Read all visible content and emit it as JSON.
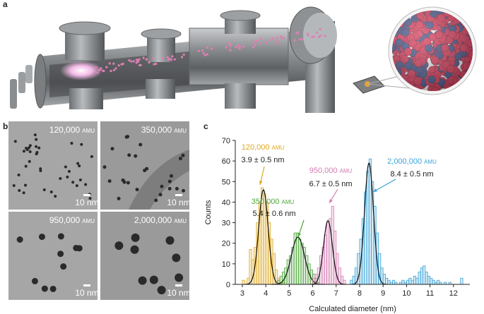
{
  "panel_labels": [
    "a",
    "b",
    "c"
  ],
  "tem_images": [
    {
      "name": "120,000",
      "unit": "AMU",
      "scale": "10 nm"
    },
    {
      "name": "350,000",
      "unit": "AMU",
      "scale": "10 nm"
    },
    {
      "name": "950,000",
      "unit": "AMU",
      "scale": "10 nm"
    },
    {
      "name": "2,000,000",
      "unit": "AMU",
      "scale": "10 nm"
    }
  ],
  "chart_data": {
    "type": "histogram",
    "xlabel": "Calculated diameter (nm)",
    "ylabel": "Counts",
    "xlim": [
      2.7,
      12.7
    ],
    "ylim": [
      0,
      70
    ],
    "xticks": [
      3,
      4,
      5,
      6,
      7,
      8,
      9,
      10,
      11,
      12
    ],
    "yticks": [
      0,
      10,
      20,
      30,
      40,
      50,
      60,
      70
    ],
    "series": [
      {
        "name": "120,000",
        "unit": "AMU",
        "label": "3.9 ± 0.5 nm",
        "color": "#e0a81c",
        "bins": [
          3.0,
          3.1,
          3.2,
          3.3,
          3.4,
          3.5,
          3.6,
          3.7,
          3.8,
          3.9,
          4.0,
          4.1,
          4.2,
          4.3,
          4.4,
          4.5,
          4.6,
          4.7,
          4.8
        ],
        "values": [
          2,
          0,
          3,
          17,
          12,
          18,
          30,
          40,
          47,
          44,
          40,
          30,
          22,
          15,
          7,
          3,
          1,
          1
        ],
        "fit": {
          "center": 3.9,
          "height": 46,
          "width": 0.2
        }
      },
      {
        "name": "350,000",
        "unit": "AMU",
        "label": "5.4 ± 0.6 nm",
        "color": "#4fa83d",
        "bins": [
          4.5,
          4.6,
          4.7,
          4.8,
          4.9,
          5.0,
          5.1,
          5.2,
          5.3,
          5.4,
          5.5,
          5.6,
          5.7,
          5.8,
          5.9,
          6.0,
          6.1,
          6.2,
          6.3
        ],
        "values": [
          2,
          4,
          6,
          8,
          12,
          14,
          18,
          25,
          25,
          22,
          20,
          18,
          14,
          10,
          7,
          5,
          3,
          1
        ],
        "fit": {
          "center": 5.37,
          "height": 23,
          "width": 0.28
        }
      },
      {
        "name": "950,000",
        "unit": "AMU",
        "label": "6.7 ± 0.5 nm",
        "color": "#d47bb3",
        "bins": [
          6.0,
          6.1,
          6.2,
          6.3,
          6.4,
          6.5,
          6.6,
          6.7,
          6.8,
          6.9,
          7.0,
          7.1,
          7.2,
          7.3,
          7.4
        ],
        "values": [
          3,
          5,
          8,
          14,
          18,
          24,
          30,
          32,
          38,
          26,
          15,
          8,
          4,
          2
        ],
        "fit": {
          "center": 6.65,
          "height": 31,
          "width": 0.19
        }
      },
      {
        "name": "2,000,000",
        "unit": "AMU",
        "label": "8.4 ± 0.5 nm",
        "color": "#3ba3d8",
        "bins": [
          7.6,
          7.7,
          7.8,
          7.9,
          8.0,
          8.1,
          8.2,
          8.3,
          8.4,
          8.5,
          8.6,
          8.7,
          8.8,
          8.9,
          9.0,
          9.1,
          9.2,
          9.3,
          9.4,
          9.5,
          9.6,
          9.7,
          9.8,
          9.9,
          10.0,
          10.1,
          10.2,
          10.3,
          10.4,
          10.5,
          10.6,
          10.7,
          10.8,
          10.9,
          11.0,
          11.1,
          11.2,
          11.3,
          11.4,
          11.5,
          11.6,
          11.7,
          11.8,
          11.9,
          12.0,
          12.1,
          12.2,
          12.3,
          12.4
        ],
        "values": [
          2,
          4,
          8,
          15,
          22,
          32,
          45,
          55,
          61,
          50,
          38,
          25,
          15,
          8,
          5,
          3,
          2,
          1,
          2,
          1,
          0,
          1,
          2,
          1,
          2,
          3,
          2,
          4,
          3,
          6,
          8,
          9,
          6,
          4,
          3,
          2,
          1,
          2,
          1,
          0,
          1,
          0,
          1,
          0,
          0,
          0,
          0,
          3
        ],
        "fit": {
          "center": 8.4,
          "height": 59,
          "width": 0.19
        }
      }
    ]
  }
}
